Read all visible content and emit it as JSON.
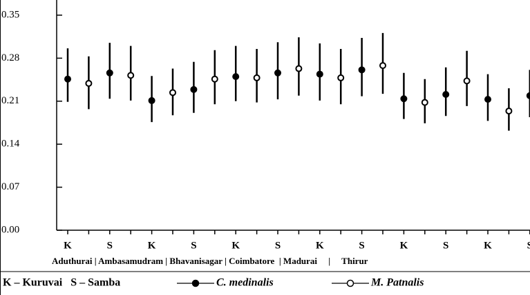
{
  "chart_data": {
    "type": "errorbar",
    "xlabel": "Aduthurai | Ambasamudram | Bhavanisagar | Coimbatore  | Madurai     |     Thirur",
    "note": "K – Kuruvai   S – Samba",
    "categories": [
      "K",
      null,
      "S",
      null,
      "K",
      null,
      "S",
      null,
      "K",
      null,
      "S",
      null,
      "K",
      null,
      "S",
      null,
      "K",
      null,
      "S",
      null,
      "K",
      null,
      "S"
    ],
    "ylim": [
      0,
      0.35
    ],
    "yticks": [
      {
        "value": 0,
        "label": "0.00"
      },
      0.07,
      0.14,
      0.21,
      0.28,
      0.35
    ],
    "series": [
      {
        "name": "C. medinalis",
        "color": "#000000",
        "marker_fill": "#000000",
        "values": [
          0.246,
          null,
          0.256,
          null,
          0.211,
          null,
          0.229,
          null,
          0.25,
          null,
          0.256,
          null,
          0.254,
          null,
          0.261,
          null,
          0.214,
          null,
          0.221,
          null,
          0.213,
          null,
          0.219
        ],
        "low": [
          0.209,
          null,
          0.214,
          null,
          0.176,
          null,
          0.191,
          null,
          0.21,
          null,
          0.213,
          null,
          0.211,
          null,
          0.218,
          null,
          0.181,
          null,
          0.186,
          null,
          0.178,
          null,
          0.184
        ],
        "high": [
          0.296,
          null,
          0.305,
          null,
          0.251,
          null,
          0.274,
          null,
          0.3,
          null,
          0.306,
          null,
          0.304,
          null,
          0.313,
          null,
          0.256,
          null,
          0.265,
          null,
          0.254,
          null,
          0.261
        ]
      },
      {
        "name": "M. Patnalis",
        "color": "#000000",
        "marker_fill": "#ffffff",
        "values": [
          null,
          0.239,
          null,
          0.252,
          null,
          0.224,
          null,
          0.246,
          null,
          0.248,
          null,
          0.263,
          null,
          0.248,
          null,
          0.268,
          null,
          0.208,
          null,
          0.243,
          null,
          0.194,
          null
        ],
        "low": [
          null,
          0.197,
          null,
          0.211,
          null,
          0.187,
          null,
          0.205,
          null,
          0.208,
          null,
          0.219,
          null,
          0.205,
          null,
          0.222,
          null,
          0.174,
          null,
          0.202,
          null,
          0.162,
          null
        ],
        "high": [
          null,
          0.283,
          null,
          0.3,
          null,
          0.263,
          null,
          0.293,
          null,
          0.295,
          null,
          0.314,
          null,
          0.295,
          null,
          0.321,
          null,
          0.246,
          null,
          0.292,
          null,
          0.231,
          null
        ]
      }
    ]
  }
}
